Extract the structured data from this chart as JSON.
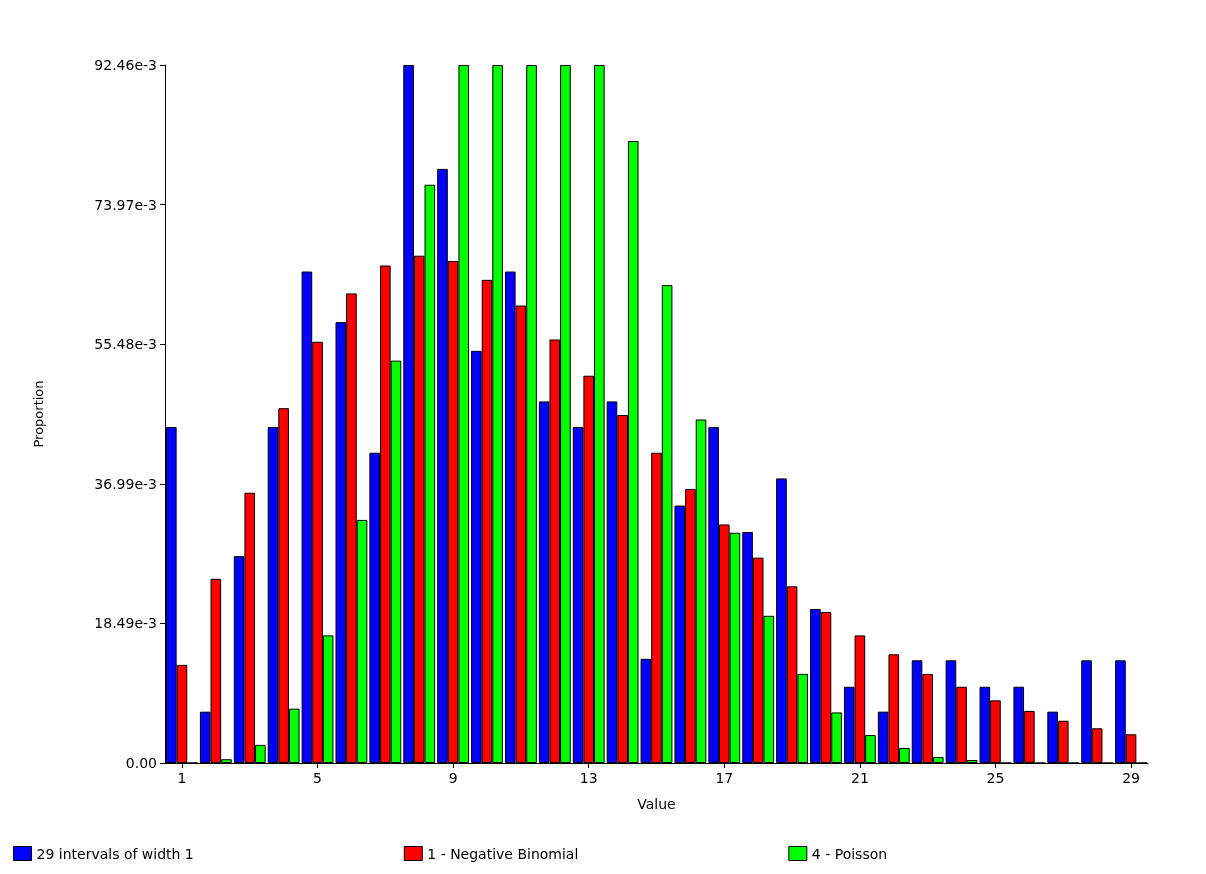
{
  "chart_data": {
    "type": "bar",
    "xlabel": "Value",
    "ylabel": "Proportion",
    "categories": [
      "1",
      null,
      null,
      null,
      "5",
      null,
      null,
      null,
      "9",
      null,
      null,
      null,
      "13",
      null,
      null,
      null,
      "17",
      null,
      null,
      null,
      "21",
      null,
      null,
      null,
      "25",
      null,
      null,
      null,
      "29"
    ],
    "series": [
      {
        "name": "29 intervals of width 1",
        "color": "#0000ff",
        "values": [
          0.0445,
          0.0068,
          0.0274,
          0.0445,
          0.0651,
          0.0584,
          0.0411,
          0.09246,
          0.0787,
          0.0546,
          0.0651,
          0.0479,
          0.0445,
          0.0479,
          0.0138,
          0.0341,
          0.0445,
          0.0306,
          0.0377,
          0.0204,
          0.0101,
          0.0068,
          0.0136,
          0.0136,
          0.0101,
          0.0101,
          0.0068,
          0.0136,
          0.0136
        ]
      },
      {
        "name": "1 - Negative Binomial",
        "color": "#ff0000",
        "values": [
          0.013,
          0.0244,
          0.0358,
          0.047,
          0.0558,
          0.0622,
          0.0659,
          0.0672,
          0.0665,
          0.064,
          0.0606,
          0.0561,
          0.0513,
          0.0461,
          0.0411,
          0.0363,
          0.0316,
          0.0272,
          0.0234,
          0.02,
          0.0169,
          0.0144,
          0.0118,
          0.0101,
          0.0083,
          0.0069,
          0.0056,
          0.0046,
          0.0038
        ]
      },
      {
        "name": "4 - Poisson",
        "color": "#00ff00",
        "values": [
          0,
          0.0005,
          0.0024,
          0.0072,
          0.0169,
          0.0322,
          0.0533,
          0.0766,
          0.09246,
          0.09246,
          0.09246,
          0.09246,
          0.09246,
          0.0824,
          0.0633,
          0.0455,
          0.0305,
          0.0195,
          0.0118,
          0.0067,
          0.0037,
          0.002,
          0.0008,
          0.0004,
          0,
          0,
          0,
          0,
          0
        ]
      }
    ],
    "ylim": [
      0,
      0.09246
    ],
    "yticks": [
      {
        "value": 0,
        "label": "0.00"
      },
      {
        "value": 0.01849,
        "label": "18.49e-3"
      },
      {
        "value": 0.03699,
        "label": "36.99e-3"
      },
      {
        "value": 0.05548,
        "label": "55.48e-3"
      },
      {
        "value": 0.07397,
        "label": "73.97e-3"
      },
      {
        "value": 0.09246,
        "label": "92.46e-3"
      }
    ],
    "grid": false,
    "legend": "bottom"
  }
}
